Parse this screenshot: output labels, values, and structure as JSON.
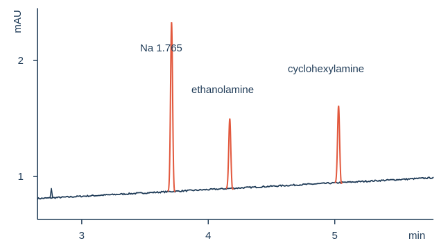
{
  "chart_data": {
    "type": "line",
    "title": "",
    "xlabel": "min",
    "ylabel": "mAU",
    "xlim": [
      2.65,
      5.78
    ],
    "ylim": [
      0.63,
      2.45
    ],
    "x_ticks": [
      3,
      4,
      5
    ],
    "y_ticks": [
      1,
      2
    ],
    "x_tick_labels": [
      "3",
      "4",
      "5"
    ],
    "y_tick_labels": [
      "1",
      "2"
    ],
    "grid": false,
    "colors": {
      "axis": "#1f3b57",
      "baseline": "#1f3b57",
      "peaks": "#e2583d"
    },
    "baseline": {
      "start": [
        2.65,
        0.81
      ],
      "end": [
        5.78,
        0.99
      ],
      "noise": 0.006
    },
    "small_spike": {
      "x": 2.76,
      "y": 0.9
    },
    "peaks": [
      {
        "label": "Na 1.765",
        "x": 3.71,
        "apex_y": 2.33
      },
      {
        "label": "ethanolamine",
        "x": 4.17,
        "apex_y": 1.5
      },
      {
        "label": "cyclohexylamine",
        "x": 5.03,
        "apex_y": 1.61
      }
    ]
  }
}
